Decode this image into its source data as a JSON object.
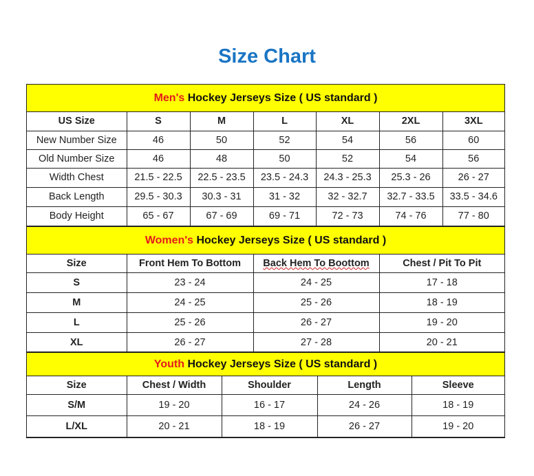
{
  "title": "Size Chart",
  "colors": {
    "title": "#1a75c4",
    "banner_bg": "#ffff00",
    "highlight": "#e31b1b"
  },
  "men": {
    "banner_highlight": "Men's",
    "banner_rest": " Hockey Jerseys Size ( US standard )",
    "headers": [
      "US Size",
      "S",
      "M",
      "L",
      "XL",
      "2XL",
      "3XL"
    ],
    "rows": [
      [
        "New Number Size",
        "46",
        "50",
        "52",
        "54",
        "56",
        "60"
      ],
      [
        "Old Number Size",
        "46",
        "48",
        "50",
        "52",
        "54",
        "56"
      ],
      [
        "Width Chest",
        "21.5 - 22.5",
        "22.5 - 23.5",
        "23.5 - 24.3",
        "24.3 - 25.3",
        "25.3 - 26",
        "26 - 27"
      ],
      [
        "Back Length",
        "29.5 - 30.3",
        "30.3 - 31",
        "31 - 32",
        "32 - 32.7",
        "32.7 - 33.5",
        "33.5 - 34.6"
      ],
      [
        "Body Height",
        "65 - 67",
        "67 - 69",
        "69 - 71",
        "72 - 73",
        "74 - 76",
        "77 - 80"
      ]
    ]
  },
  "women": {
    "banner_highlight": "Women's",
    "banner_rest": " Hockey Jerseys Size ( US standard )",
    "headers": [
      "Size",
      "Front Hem To Bottom",
      "Back Hem To Boottom",
      "Chest / Pit To Pit"
    ],
    "rows": [
      [
        "S",
        "23 - 24",
        "24 - 25",
        "17 - 18"
      ],
      [
        "M",
        "24 - 25",
        "25 - 26",
        "18 - 19"
      ],
      [
        "L",
        "25 - 26",
        "26 - 27",
        "19 - 20"
      ],
      [
        "XL",
        "26 - 27",
        "27 - 28",
        "20 - 21"
      ]
    ]
  },
  "youth": {
    "banner_highlight": "Youth",
    "banner_rest": " Hockey Jerseys Size ( US standard )",
    "headers": [
      "Size",
      "Chest / Width",
      "Shoulder",
      "Length",
      "Sleeve"
    ],
    "rows": [
      [
        "S/M",
        "19 - 20",
        "16 - 17",
        "24 - 26",
        "18 - 19"
      ],
      [
        "L/XL",
        "20 - 21",
        "18 - 19",
        "26 - 27",
        "19 - 20"
      ]
    ]
  }
}
